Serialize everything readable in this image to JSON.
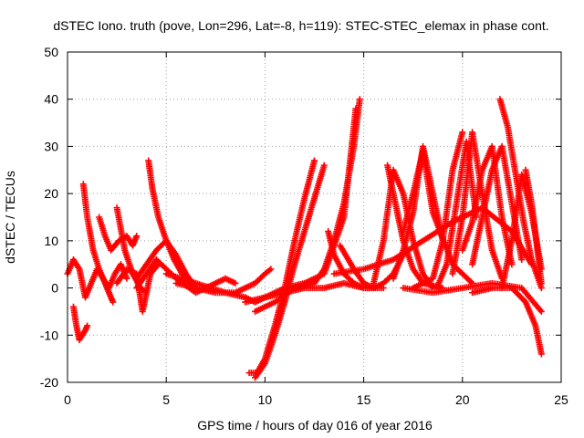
{
  "chart_data": {
    "type": "scatter",
    "title": "dSTEC Iono. truth (pove, Lon=296, Lat=-8, h=119): STEC-STEC_elemax in phase cont.",
    "xlabel": "GPS time / hours of day 016 of year 2016",
    "ylabel": "dSTEC  / TECUs",
    "xlim": [
      0,
      25
    ],
    "ylim": [
      -20,
      50
    ],
    "x_ticks": [
      0,
      5,
      10,
      15,
      20,
      25
    ],
    "y_ticks": [
      -20,
      -10,
      0,
      10,
      20,
      30,
      40,
      50
    ],
    "x_tick_labels": [
      "0",
      "5",
      "10",
      "15",
      "20",
      "25"
    ],
    "y_tick_labels": [
      "-20",
      "-10",
      "0",
      "10",
      "20",
      "30",
      "40",
      "50"
    ],
    "grid": true,
    "marker": "+",
    "color": "#ff0000",
    "series": [
      {
        "x": [
          0.0,
          0.3,
          0.6,
          0.9,
          1.2,
          1.5,
          1.8,
          2.1,
          2.4,
          2.7,
          3.0
        ],
        "y": [
          3,
          6,
          4,
          -2,
          1,
          4,
          2,
          0,
          3,
          5,
          2
        ]
      },
      {
        "x": [
          0.3,
          0.45,
          0.6,
          0.75,
          0.9,
          1.0
        ],
        "y": [
          -4,
          -8,
          -11,
          -10,
          -9,
          -8
        ]
      },
      {
        "x": [
          0.8,
          1.0,
          1.3,
          1.6,
          1.9,
          2.1,
          2.3
        ],
        "y": [
          22,
          15,
          8,
          4,
          1,
          -1,
          -3
        ]
      },
      {
        "x": [
          1.6,
          1.9,
          2.2,
          2.6,
          3.0,
          3.3,
          3.5
        ],
        "y": [
          15,
          11,
          8,
          10,
          11,
          9,
          11
        ]
      },
      {
        "x": [
          2.5,
          2.9,
          3.3,
          3.7,
          4.0
        ],
        "y": [
          17,
          8,
          3,
          0,
          -1
        ]
      },
      {
        "x": [
          2.5,
          3.0,
          3.5,
          3.8,
          4.2,
          4.6
        ],
        "y": [
          1,
          4,
          3,
          -5,
          3,
          5
        ]
      },
      {
        "x": [
          4.1,
          4.3,
          4.6,
          5.0,
          5.4,
          5.8,
          6.2
        ],
        "y": [
          27,
          21,
          15,
          10,
          6,
          3,
          1
        ]
      },
      {
        "x": [
          3.5,
          4.0,
          4.5,
          5.0,
          5.5,
          6.0,
          6.5
        ],
        "y": [
          2,
          5,
          8,
          10,
          7,
          3,
          0
        ]
      },
      {
        "x": [
          3.5,
          4.5,
          5.5,
          6.5,
          7.5,
          8.0,
          8.5
        ],
        "y": [
          0,
          6,
          2,
          -1,
          1,
          2,
          1
        ]
      },
      {
        "x": [
          5.5,
          6.5,
          7.5,
          8.5,
          9.0,
          9.5,
          10.0,
          10.3
        ],
        "y": [
          1,
          0,
          -1,
          -1,
          0,
          1,
          3,
          4
        ]
      },
      {
        "x": [
          5.0,
          6.5,
          8.0,
          9.0,
          9.5,
          10.0,
          11.0,
          12.0,
          13.0,
          14.0,
          15.0,
          16.0
        ],
        "y": [
          3,
          1,
          -1,
          -2,
          -3,
          -2,
          -1,
          0,
          0,
          1,
          0,
          0
        ]
      },
      {
        "x": [
          9.2,
          9.6,
          10.0,
          10.5,
          11.0,
          11.5,
          12.0,
          12.5
        ],
        "y": [
          -18,
          -18,
          -15,
          -8,
          0,
          10,
          19,
          27
        ]
      },
      {
        "x": [
          9.5,
          10.0,
          10.5,
          11.0,
          11.5,
          12.0,
          12.5,
          13.0
        ],
        "y": [
          -19,
          -16,
          -10,
          -3,
          5,
          12,
          19,
          26
        ]
      },
      {
        "x": [
          9.5,
          10.5,
          11.5,
          12.5,
          13.0,
          13.5,
          14.0,
          14.5,
          14.8
        ],
        "y": [
          -5,
          -3,
          0,
          1,
          4,
          10,
          18,
          30,
          40
        ]
      },
      {
        "x": [
          9.0,
          10.0,
          11.0,
          12.0,
          13.0,
          14.0,
          14.6
        ],
        "y": [
          -3,
          -2,
          0,
          1,
          3,
          15,
          38
        ]
      },
      {
        "x": [
          13.2,
          13.5,
          14.0,
          14.5,
          15.0,
          15.5
        ],
        "y": [
          12,
          7,
          3,
          1,
          0,
          0
        ]
      },
      {
        "x": [
          13.8,
          14.5,
          15.0,
          15.5,
          16.0,
          16.5,
          17.0
        ],
        "y": [
          9,
          4,
          1,
          0,
          1,
          3,
          7
        ]
      },
      {
        "x": [
          15.5,
          16.0,
          16.5,
          17.0,
          17.5,
          18.0,
          18.5
        ],
        "y": [
          1,
          10,
          25,
          20,
          10,
          3,
          0
        ]
      },
      {
        "x": [
          16.2,
          16.6,
          17.0,
          17.5,
          18.0,
          19.0
        ],
        "y": [
          26,
          18,
          10,
          4,
          1,
          0
        ]
      },
      {
        "x": [
          16.5,
          17.0,
          17.5,
          18.0,
          18.5,
          19.0
        ],
        "y": [
          2,
          8,
          16,
          30,
          20,
          10
        ]
      },
      {
        "x": [
          17.0,
          17.5,
          18.0,
          18.5,
          19.5,
          20.5
        ],
        "y": [
          12,
          20,
          29,
          16,
          5,
          1
        ]
      },
      {
        "x": [
          17.5,
          18.5,
          19.0,
          19.5,
          20.0
        ],
        "y": [
          0,
          2,
          10,
          25,
          33
        ]
      },
      {
        "x": [
          18.7,
          19.2,
          19.7,
          20.2,
          20.7
        ],
        "y": [
          0,
          5,
          18,
          31,
          15
        ]
      },
      {
        "x": [
          19.5,
          20.0,
          20.5,
          21.0,
          21.5,
          22.0
        ],
        "y": [
          3,
          15,
          33,
          20,
          8,
          2
        ]
      },
      {
        "x": [
          20.0,
          20.5,
          21.0,
          21.5,
          22.0,
          22.5
        ],
        "y": [
          8,
          14,
          25,
          30,
          15,
          5
        ]
      },
      {
        "x": [
          20.5,
          21.0,
          21.5,
          22.0,
          22.5,
          23.0
        ],
        "y": [
          5,
          15,
          25,
          30,
          18,
          6
        ]
      },
      {
        "x": [
          21.9,
          22.3,
          22.7,
          23.1,
          23.5,
          24.0
        ],
        "y": [
          40,
          34,
          24,
          14,
          6,
          0
        ]
      },
      {
        "x": [
          22.0,
          22.5,
          23.0,
          23.5,
          24.0
        ],
        "y": [
          0,
          10,
          24,
          16,
          4
        ]
      },
      {
        "x": [
          23.2,
          23.5,
          23.8,
          24.0
        ],
        "y": [
          25,
          18,
          8,
          1
        ]
      },
      {
        "x": [
          17.0,
          18.5,
          20.0,
          21.5,
          23.0,
          24.0
        ],
        "y": [
          0,
          -1,
          0,
          1,
          0,
          -5
        ]
      },
      {
        "x": [
          20.5,
          21.5,
          22.5,
          23.2,
          23.7,
          24.0
        ],
        "y": [
          -1,
          0,
          0,
          -3,
          -8,
          -14
        ]
      },
      {
        "x": [
          13.5,
          15.0,
          16.5,
          18.0,
          19.5,
          21.0,
          22.5,
          23.5
        ],
        "y": [
          3,
          4,
          6,
          10,
          14,
          17,
          12,
          5
        ]
      }
    ]
  }
}
